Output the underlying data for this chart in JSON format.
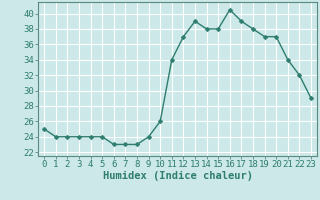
{
  "x": [
    0,
    1,
    2,
    3,
    4,
    5,
    6,
    7,
    8,
    9,
    10,
    11,
    12,
    13,
    14,
    15,
    16,
    17,
    18,
    19,
    20,
    21,
    22,
    23
  ],
  "y": [
    25,
    24,
    24,
    24,
    24,
    24,
    23,
    23,
    23,
    24,
    26,
    34,
    37,
    39,
    38,
    38,
    40.5,
    39,
    38,
    37,
    37,
    34,
    32,
    29
  ],
  "line_color": "#2e7d6e",
  "marker": "D",
  "marker_size": 2.5,
  "line_width": 1.0,
  "bg_color": "#cce8e8",
  "grid_color": "#ffffff",
  "xlabel": "Humidex (Indice chaleur)",
  "xlim": [
    -0.5,
    23.5
  ],
  "ylim": [
    21.5,
    41.5
  ],
  "yticks": [
    22,
    24,
    26,
    28,
    30,
    32,
    34,
    36,
    38,
    40
  ],
  "xlabel_fontsize": 7.5,
  "tick_fontsize": 6.5,
  "tick_color": "#2e7d6e",
  "spine_color": "#5a8a80"
}
